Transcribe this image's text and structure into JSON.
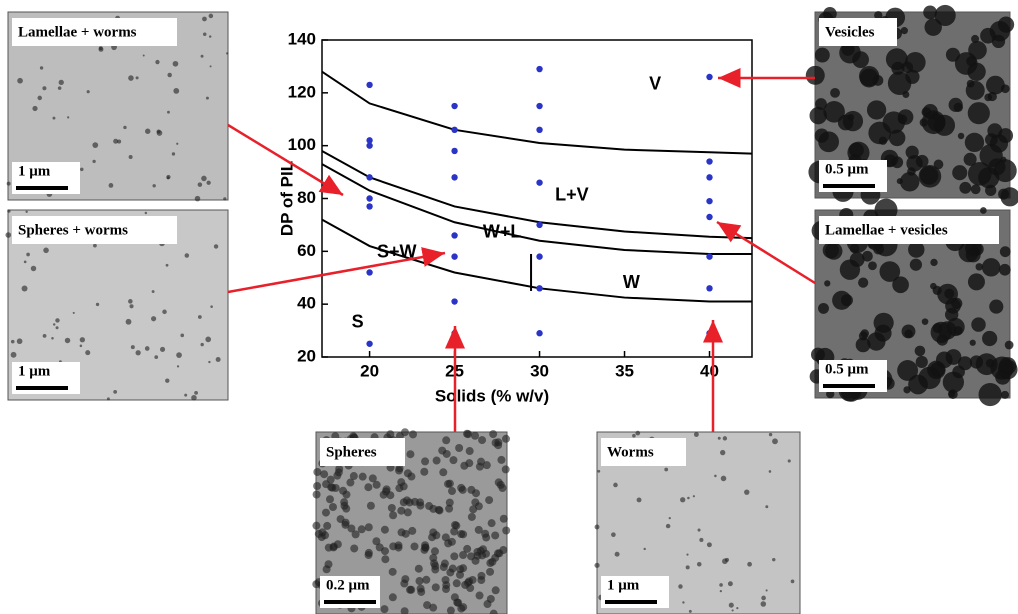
{
  "chart_data": {
    "type": "scatter",
    "x_label": "Solids (% w/v)",
    "y_label": "DP of PIL",
    "xlim": [
      17.2,
      42.5
    ],
    "ylim": [
      20,
      140
    ],
    "xticks": [
      20,
      25,
      30,
      35,
      40
    ],
    "yticks": [
      20,
      40,
      60,
      80,
      100,
      120,
      140
    ],
    "color": "#2a35c8",
    "x": [
      20,
      20,
      20,
      20,
      20,
      20,
      20,
      20,
      25,
      25,
      25,
      25,
      25,
      25,
      25,
      25,
      30,
      30,
      30,
      30,
      30,
      30,
      30,
      30,
      40,
      40,
      40,
      40,
      40,
      40,
      40,
      40
    ],
    "values": [
      123,
      102,
      100,
      88,
      80,
      77,
      52,
      25,
      115,
      106,
      98,
      88,
      66,
      58,
      41,
      29,
      129,
      115,
      106,
      86,
      70,
      58,
      46,
      29,
      126,
      94,
      88,
      79,
      73,
      58,
      46,
      29
    ],
    "boundaries": [
      {
        "x": [
          17.2,
          20,
          25,
          30,
          35,
          40,
          42.5
        ],
        "y": [
          128,
          116,
          106,
          101,
          98.5,
          97.5,
          97
        ]
      },
      {
        "x": [
          17.2,
          20,
          25,
          30,
          35,
          40,
          42.5
        ],
        "y": [
          98,
          88,
          77,
          71,
          67.5,
          65.5,
          65
        ]
      },
      {
        "x": [
          17.2,
          20,
          25,
          30,
          35,
          40,
          42.5
        ],
        "y": [
          93,
          83,
          71,
          64,
          60.5,
          59,
          59
        ]
      },
      {
        "x": [
          17.2,
          20,
          25,
          30,
          35,
          40,
          42.5
        ],
        "y": [
          72,
          62,
          52,
          46,
          42.5,
          41,
          41
        ]
      },
      {
        "x": [
          29.5,
          29.5
        ],
        "y": [
          45,
          59
        ]
      }
    ],
    "annotations": [
      "S",
      "S+W",
      "W+L",
      "L+V",
      "V",
      "W"
    ],
    "insets": [
      {
        "label": "Lamellae + worms",
        "scale": "1 μm"
      },
      {
        "label": "Spheres + worms",
        "scale": "1 μm"
      },
      {
        "label": "Spheres",
        "scale": "0.2 μm"
      },
      {
        "label": "Worms",
        "scale": "1 μm"
      },
      {
        "label": "Vesicles",
        "scale": "0.5 μm"
      },
      {
        "label": "Lamellae + vesicles",
        "scale": "0.5 μm"
      }
    ]
  }
}
